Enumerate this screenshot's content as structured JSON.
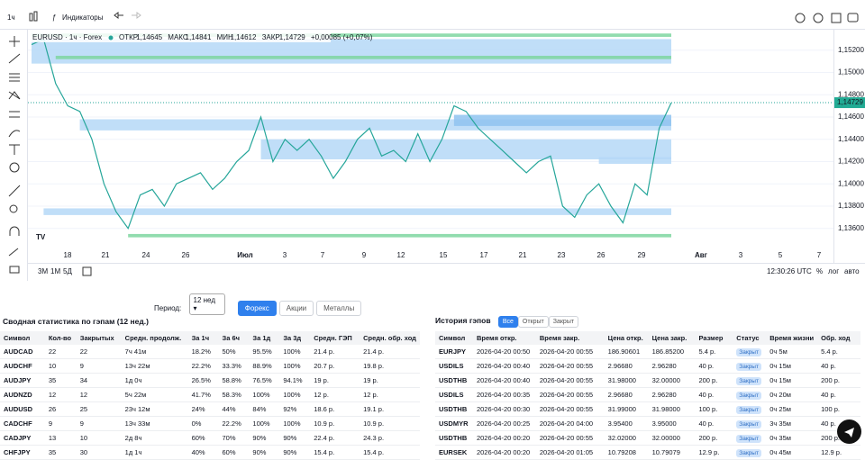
{
  "toolbar": {
    "interval": "1ч",
    "indicators": "Индикаторы"
  },
  "chart": {
    "type": "line",
    "symbol": "EURUSD · 1ч · Forex",
    "ohlc": [
      {
        "label": "ОТКР",
        "value": "1,14645"
      },
      {
        "label": "МАКС",
        "value": "1,14841"
      },
      {
        "label": "МИН",
        "value": "1,14612"
      },
      {
        "label": "ЗАКР",
        "value": "1,14729"
      }
    ],
    "change": "+0,00085 (+0,07%)",
    "ylim": [
      1.1342,
      1.1536
    ],
    "yticks": [
      {
        "value": 1.152,
        "label": "1,15200"
      },
      {
        "value": 1.15,
        "label": "1,15000"
      },
      {
        "value": 1.148,
        "label": "1,14800"
      },
      {
        "value": 1.146,
        "label": "1,14600"
      },
      {
        "value": 1.144,
        "label": "1,14400"
      },
      {
        "value": 1.142,
        "label": "1,14200"
      },
      {
        "value": 1.14,
        "label": "1,14000"
      },
      {
        "value": 1.138,
        "label": "1,13800"
      },
      {
        "value": 1.136,
        "label": "1,13600"
      }
    ],
    "last": {
      "value": 1.14729,
      "label": "1,14729"
    },
    "xticks": [
      "18",
      "21",
      "24",
      "26",
      "Июл",
      "3",
      "7",
      "9",
      "12",
      "15",
      "17",
      "21",
      "23",
      "26",
      "29",
      "Авг",
      "3",
      "5",
      "7"
    ],
    "values": [
      1.1525,
      1.153,
      1.149,
      1.147,
      1.1465,
      1.144,
      1.14,
      1.1375,
      1.136,
      1.139,
      1.1395,
      1.138,
      1.14,
      1.1405,
      1.141,
      1.1395,
      1.1405,
      1.142,
      1.143,
      1.146,
      1.142,
      1.144,
      1.143,
      1.144,
      1.1425,
      1.1405,
      1.142,
      1.144,
      1.145,
      1.1425,
      1.143,
      1.142,
      1.1445,
      1.142,
      1.144,
      1.147,
      1.1465,
      1.145,
      1.144,
      1.143,
      1.142,
      1.141,
      1.142,
      1.1425,
      1.138,
      1.137,
      1.139,
      1.14,
      1.138,
      1.1365,
      1.14,
      1.139,
      1.145,
      1.14729
    ],
    "color": "#26a69a",
    "zones": [
      {
        "low": 1.1532,
        "high": 1.1535,
        "from_bar": 0,
        "color": "#7ed6a0"
      },
      {
        "low": 1.1508,
        "high": 1.153,
        "from_bar": 0,
        "color": "#b5d8f7"
      },
      {
        "low": 1.1512,
        "high": 1.1515,
        "from_bar": 2,
        "color": "#7ed6a0"
      },
      {
        "low": 1.1448,
        "high": 1.1458,
        "from_bar": 4,
        "color": "#b5d8f7"
      },
      {
        "low": 1.1422,
        "high": 1.144,
        "from_bar": 19,
        "color": "#b5d8f7"
      },
      {
        "low": 1.1452,
        "high": 1.1462,
        "from_bar": 35,
        "color": "#8fc3f0"
      },
      {
        "low": 1.1418,
        "high": 1.1424,
        "from_bar": 47,
        "color": "#b5d8f7"
      },
      {
        "low": 1.1372,
        "high": 1.1378,
        "from_bar": 1,
        "color": "#b5d8f7"
      },
      {
        "low": 1.1352,
        "high": 1.1355,
        "from_bar": 8,
        "color": "#7ed6a0"
      }
    ],
    "ranges": [
      "3М",
      "1М",
      "5Д"
    ],
    "time": "12:30:26 UTC",
    "options": [
      "%",
      "лог",
      "авто"
    ]
  },
  "filter": {
    "label": "Период:",
    "selected": "12 нед",
    "tabs": [
      "Форекс",
      "Акции",
      "Металлы"
    ],
    "active": 0
  },
  "summary": {
    "title": "Сводная статистика по гэпам (12 нед.)",
    "columns": [
      "Символ",
      "Кол-во",
      "Закрытых",
      "Средн. продолж.",
      "За 1ч",
      "За 6ч",
      "За 1д",
      "За 3д",
      "Средн. ГЭП",
      "Средн. обр. ход"
    ],
    "rows": [
      [
        "AUDCAD",
        "22",
        "22",
        "7ч 41м",
        "18.2%",
        "50%",
        "95.5%",
        "100%",
        "21.4 р.",
        "21.4 р."
      ],
      [
        "AUDCHF",
        "10",
        "9",
        "13ч 22м",
        "22.2%",
        "33.3%",
        "88.9%",
        "100%",
        "20.7 р.",
        "19.8 р."
      ],
      [
        "AUDJPY",
        "35",
        "34",
        "1д 0ч",
        "26.5%",
        "58.8%",
        "76.5%",
        "94.1%",
        "19 р.",
        "19 р."
      ],
      [
        "AUDNZD",
        "12",
        "12",
        "5ч 22м",
        "41.7%",
        "58.3%",
        "100%",
        "100%",
        "12 р.",
        "12 р."
      ],
      [
        "AUDUSD",
        "26",
        "25",
        "23ч 12м",
        "24%",
        "44%",
        "84%",
        "92%",
        "18.6 р.",
        "19.1 р."
      ],
      [
        "CADCHF",
        "9",
        "9",
        "13ч 33м",
        "0%",
        "22.2%",
        "100%",
        "100%",
        "10.9 р.",
        "10.9 р."
      ],
      [
        "CADJPY",
        "13",
        "10",
        "2д 8ч",
        "60%",
        "70%",
        "90%",
        "90%",
        "22.4 р.",
        "24.3 р."
      ],
      [
        "CHFJPY",
        "35",
        "30",
        "1д 1ч",
        "40%",
        "60%",
        "90%",
        "90%",
        "15.4 р.",
        "15.4 р."
      ]
    ]
  },
  "history": {
    "title": "История гэпов",
    "tabs": [
      "Все",
      "Открыт",
      "Закрыт"
    ],
    "active": 0,
    "columns": [
      "Символ",
      "Время откр.",
      "Время закр.",
      "Цена откр.",
      "Цена закр.",
      "Размер",
      "Статус",
      "Время жизни",
      "Обр. ход"
    ],
    "rows": [
      [
        "EURJPY",
        "2026-04-20 00:50",
        "2026-04-20 00:55",
        "186.90601",
        "186.85200",
        "5.4 р.",
        "Закрыт",
        "0ч 5м",
        "5.4 р."
      ],
      [
        "USDILS",
        "2026-04-20 00:40",
        "2026-04-20 00:55",
        "2.96680",
        "2.96280",
        "40 р.",
        "Закрыт",
        "0ч 15м",
        "40 р."
      ],
      [
        "USDTHB",
        "2026-04-20 00:40",
        "2026-04-20 00:55",
        "31.98000",
        "32.00000",
        "200 р.",
        "Закрыт",
        "0ч 15м",
        "200 р."
      ],
      [
        "USDILS",
        "2026-04-20 00:35",
        "2026-04-20 00:55",
        "2.96680",
        "2.96280",
        "40 р.",
        "Закрыт",
        "0ч 20м",
        "40 р."
      ],
      [
        "USDTHB",
        "2026-04-20 00:30",
        "2026-04-20 00:55",
        "31.99000",
        "31.98000",
        "100 р.",
        "Закрыт",
        "0ч 25м",
        "100 р."
      ],
      [
        "USDMYR",
        "2026-04-20 00:25",
        "2026-04-20 04:00",
        "3.95400",
        "3.95000",
        "40 р.",
        "Закрыт",
        "3ч 35м",
        "40 р."
      ],
      [
        "USDTHB",
        "2026-04-20 00:20",
        "2026-04-20 00:55",
        "32.02000",
        "32.00000",
        "200 р.",
        "Закрыт",
        "0ч 35м",
        "200 р."
      ],
      [
        "EURSEK",
        "2026-04-20 00:20",
        "2026-04-20 01:05",
        "10.79208",
        "10.79079",
        "12.9 р.",
        "Закрыт",
        "0ч 45м",
        "12.9 р."
      ]
    ]
  }
}
